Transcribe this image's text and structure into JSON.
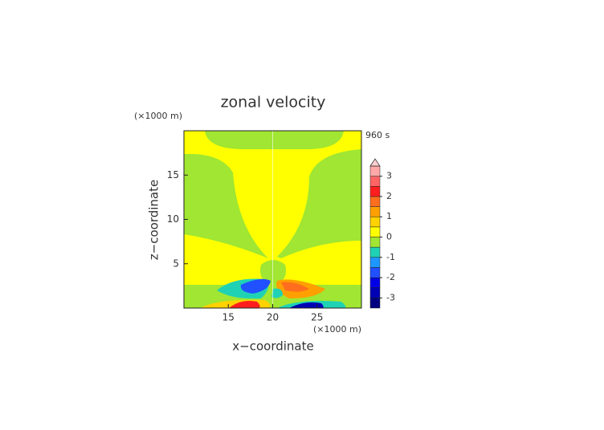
{
  "chart_data": {
    "type": "contour",
    "title": "zonal velocity",
    "time_label": "960 s",
    "xlabel": "x−coordinate",
    "ylabel": "z−coordinate",
    "x_unit": "(×1000 m)",
    "y_unit": "(×1000 m)",
    "xlim": [
      10,
      30
    ],
    "ylim": [
      0,
      20
    ],
    "xticks": [
      15,
      20,
      25
    ],
    "yticks": [
      5,
      10,
      15
    ],
    "levels": [
      -3.5,
      -3,
      -2.5,
      -2,
      -1.5,
      -1,
      -0.5,
      0,
      0.5,
      1,
      1.5,
      2,
      2.5,
      3,
      3.5
    ],
    "colors": [
      "#000080",
      "#0000b4",
      "#0000e6",
      "#2050ff",
      "#1e96ff",
      "#20d2b4",
      "#a0e632",
      "#ffff00",
      "#ffd200",
      "#ffa000",
      "#ff6e1e",
      "#ff1e1e",
      "#ff6464",
      "#ffa8a8"
    ],
    "extend_color": "#ffd0d0",
    "colorbar_ticks": [
      -3,
      -2,
      -1,
      0,
      1,
      2,
      3
    ]
  }
}
